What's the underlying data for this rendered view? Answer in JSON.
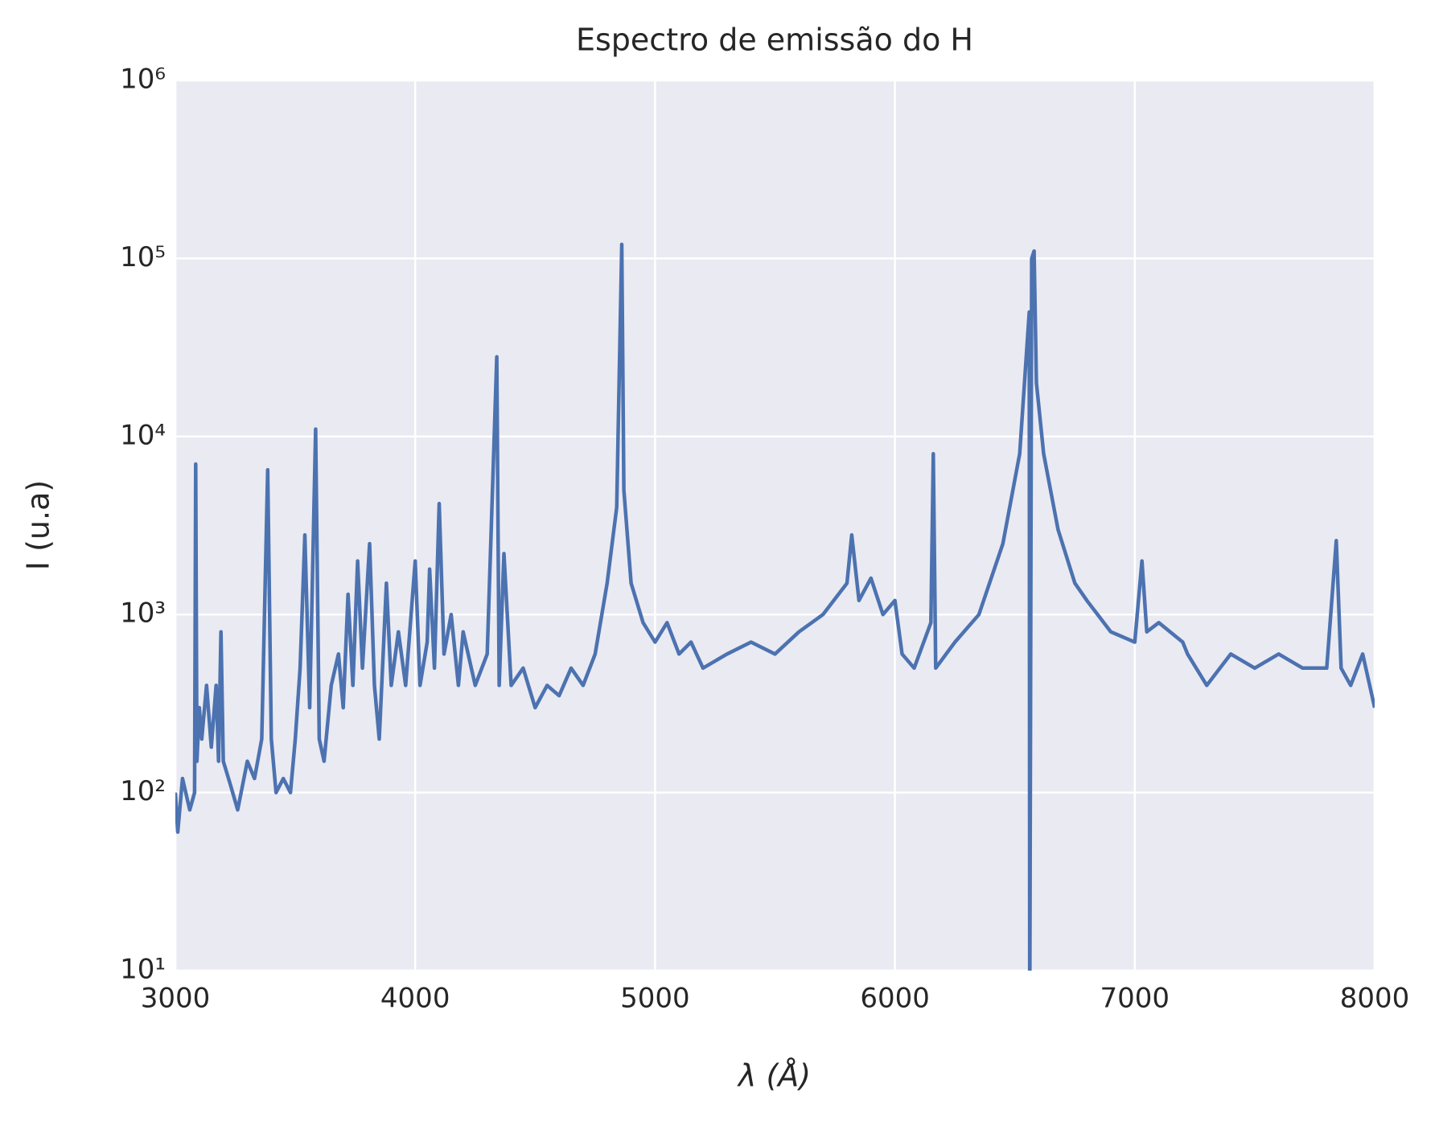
{
  "chart_data": {
    "type": "line",
    "title": "Espectro de emissão do H",
    "xlabel": "λ (Å)",
    "ylabel": "I (u.a)",
    "yscale": "log",
    "grid": true,
    "color": "#4c72b0",
    "xlim": [
      3000,
      8000
    ],
    "xticks": [
      3000,
      4000,
      5000,
      6000,
      7000,
      8000
    ],
    "ylim": [
      10,
      1000000
    ],
    "yticks": [
      {
        "value": 10,
        "label": "10¹"
      },
      {
        "value": 100,
        "label": "10²"
      },
      {
        "value": 1000,
        "label": "10³"
      },
      {
        "value": 10000,
        "label": "10⁴"
      },
      {
        "value": 100000,
        "label": "10⁵"
      },
      {
        "value": 1000000,
        "label": "10⁶"
      }
    ],
    "x": [
      3000,
      3010,
      3030,
      3060,
      3080,
      3085,
      3090,
      3100,
      3110,
      3130,
      3150,
      3170,
      3180,
      3190,
      3200,
      3230,
      3260,
      3300,
      3330,
      3360,
      3385,
      3400,
      3420,
      3450,
      3480,
      3500,
      3520,
      3540,
      3560,
      3585,
      3600,
      3620,
      3650,
      3680,
      3700,
      3720,
      3740,
      3760,
      3780,
      3810,
      3830,
      3850,
      3880,
      3900,
      3930,
      3960,
      4000,
      4020,
      4050,
      4060,
      4080,
      4100,
      4120,
      4150,
      4180,
      4200,
      4250,
      4300,
      4340,
      4350,
      4370,
      4400,
      4450,
      4500,
      4550,
      4600,
      4650,
      4700,
      4750,
      4800,
      4840,
      4861,
      4870,
      4900,
      4950,
      5000,
      5050,
      5100,
      5150,
      5200,
      5300,
      5400,
      5500,
      5600,
      5700,
      5800,
      5820,
      5850,
      5900,
      5950,
      6000,
      6030,
      6080,
      6150,
      6160,
      6170,
      6250,
      6350,
      6450,
      6520,
      6560,
      6562,
      6570,
      6580,
      6590,
      6620,
      6680,
      6750,
      6800,
      6900,
      7000,
      7030,
      7050,
      7100,
      7200,
      7220,
      7300,
      7400,
      7500,
      7600,
      7700,
      7800,
      7840,
      7860,
      7900,
      7950,
      8000
    ],
    "values": [
      100,
      60,
      120,
      80,
      100,
      7000,
      150,
      300,
      200,
      400,
      180,
      400,
      150,
      800,
      150,
      110,
      80,
      150,
      120,
      200,
      6500,
      200,
      100,
      120,
      100,
      200,
      500,
      2800,
      300,
      11000,
      200,
      150,
      400,
      600,
      300,
      1300,
      400,
      2000,
      500,
      2500,
      400,
      200,
      1500,
      400,
      800,
      400,
      2000,
      400,
      700,
      1800,
      500,
      4200,
      600,
      1000,
      400,
      800,
      400,
      600,
      28000,
      400,
      2200,
      400,
      500,
      300,
      400,
      350,
      500,
      400,
      600,
      1500,
      4000,
      120000,
      5000,
      1500,
      900,
      700,
      900,
      600,
      700,
      500,
      600,
      700,
      600,
      800,
      1000,
      1500,
      2800,
      1200,
      1600,
      1000,
      1200,
      600,
      500,
      900,
      8000,
      500,
      700,
      1000,
      2500,
      8000,
      50000,
      5,
      100000,
      110000,
      20000,
      8000,
      3000,
      1500,
      1200,
      800,
      700,
      2000,
      800,
      900,
      700,
      600,
      400,
      600,
      500,
      600,
      500,
      500,
      2600,
      500,
      400,
      600,
      300
    ]
  }
}
